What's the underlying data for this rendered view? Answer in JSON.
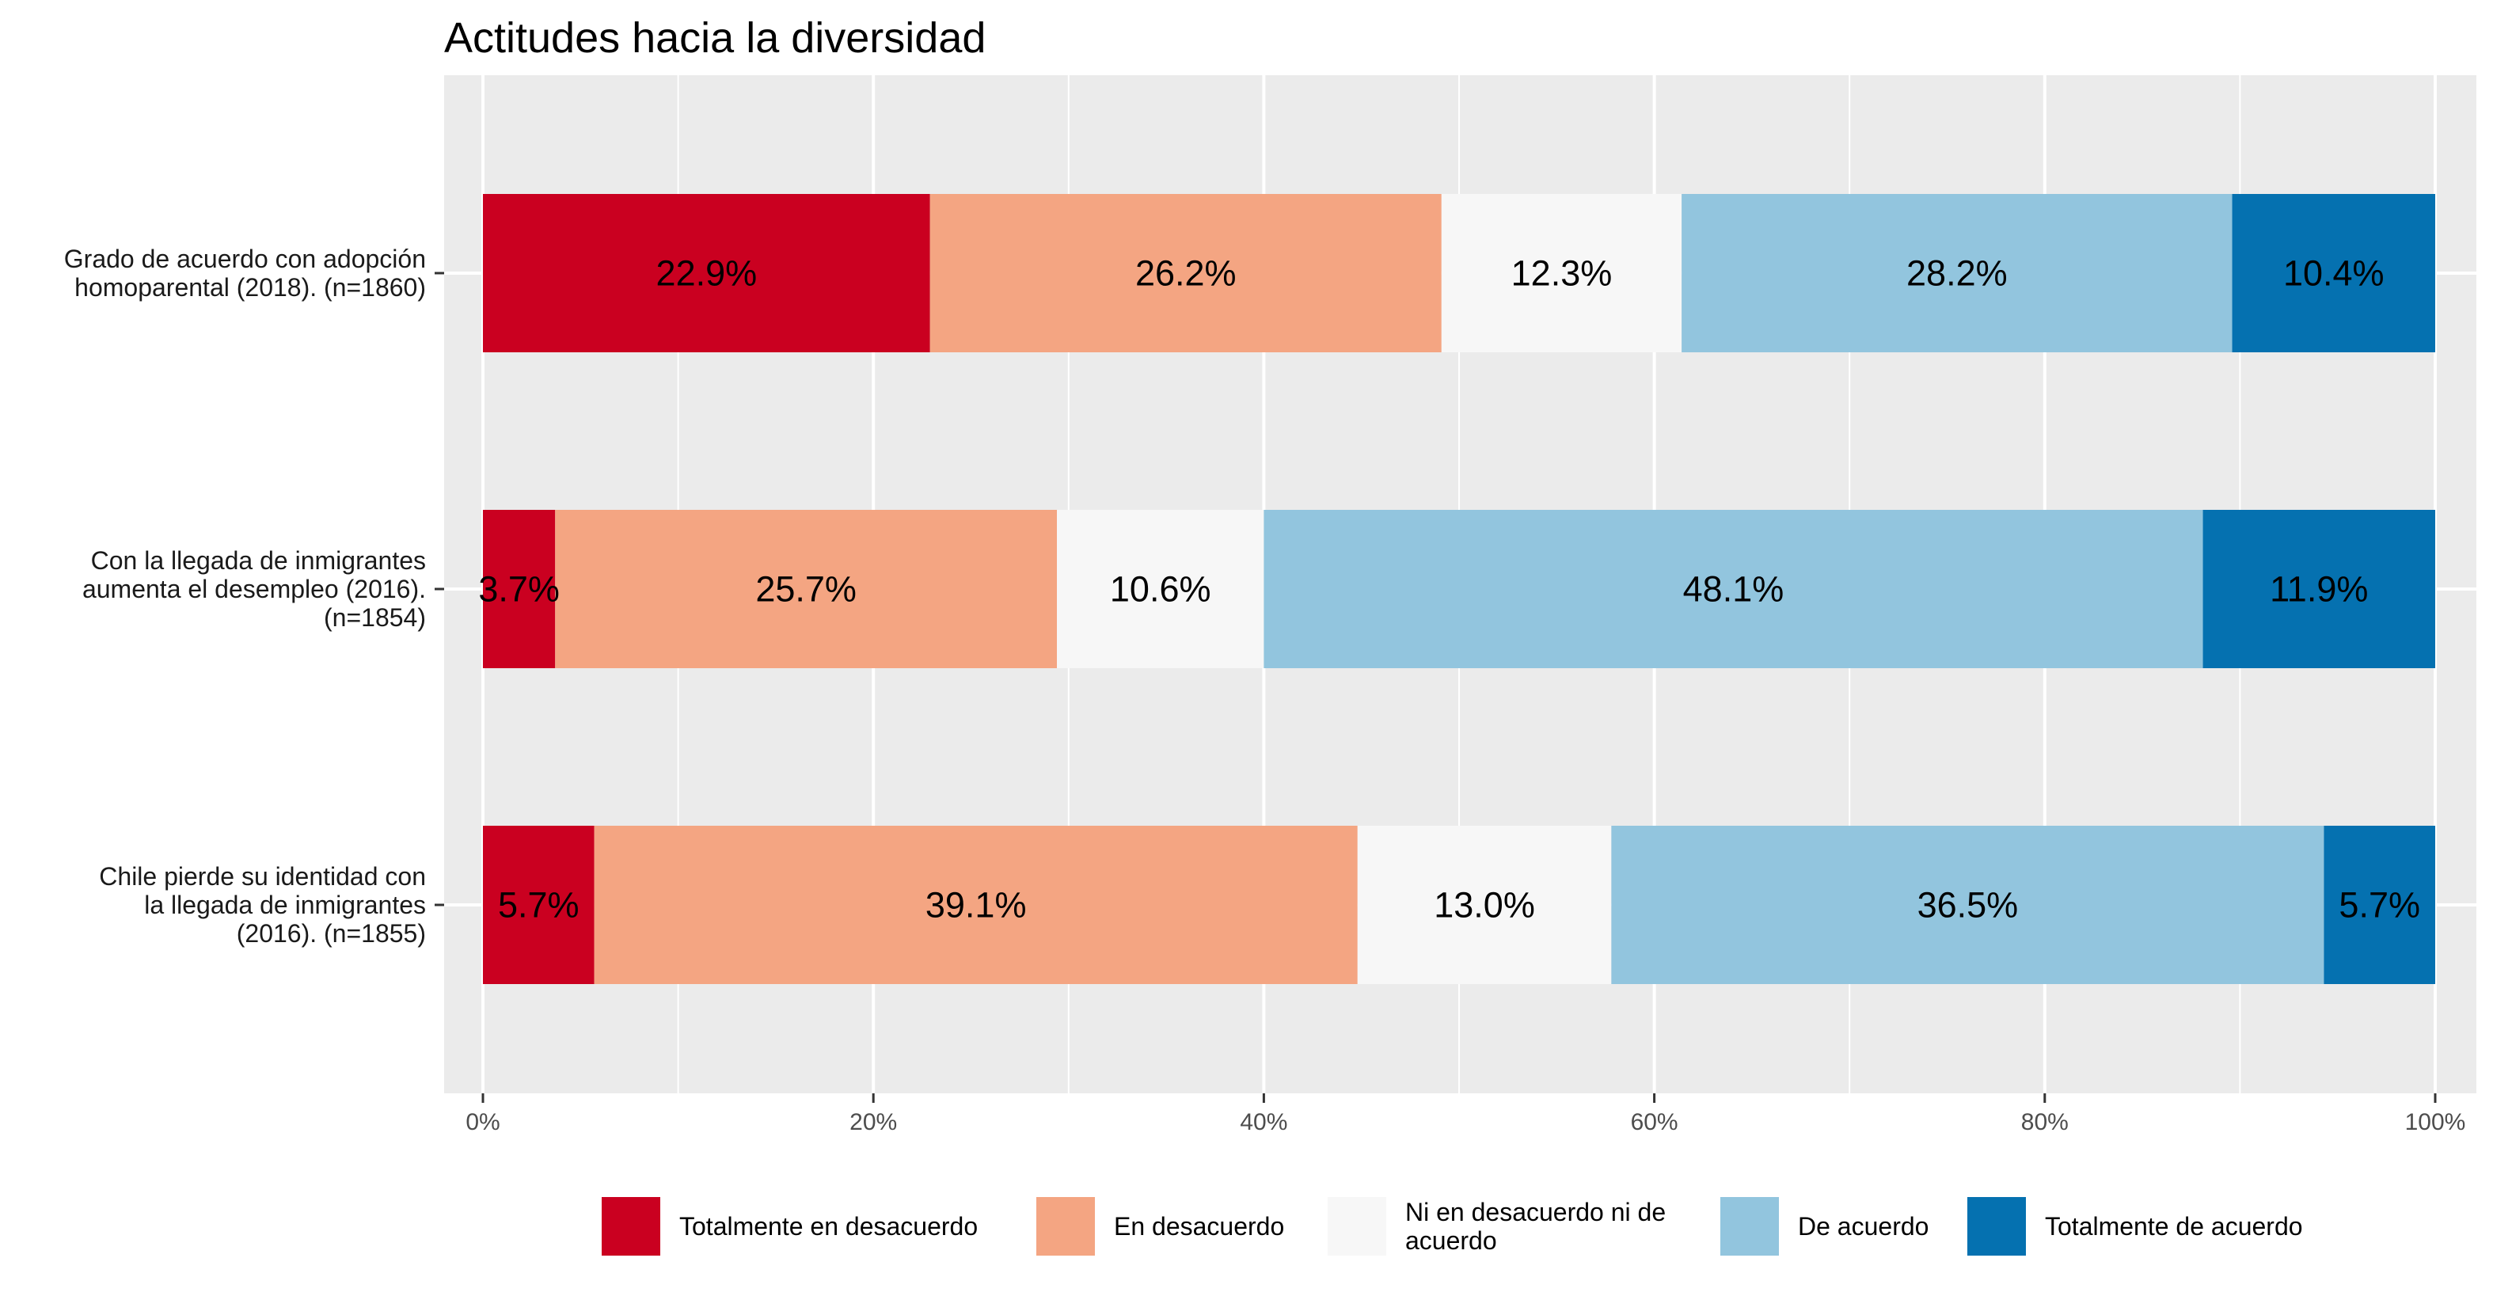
{
  "chart_data": {
    "type": "bar",
    "orientation": "horizontal",
    "stacked": true,
    "title": "Actitudes hacia la diversidad",
    "xlabel": "",
    "ylabel": "",
    "xlim": [
      0,
      100
    ],
    "x_ticks": [
      "0%",
      "20%",
      "40%",
      "60%",
      "80%",
      "100%"
    ],
    "grid": true,
    "legend_position": "bottom",
    "categories": [
      [
        "Grado de acuerdo con adopción",
        "homoparental (2018). (n=1860)"
      ],
      [
        "Con la llegada de inmigrantes",
        "aumenta el desempleo (2016).",
        "(n=1854)"
      ],
      [
        "Chile pierde su identidad con",
        "la llegada de inmigrantes",
        "(2016). (n=1855)"
      ]
    ],
    "series": [
      {
        "name": [
          "Totalmente en desacuerdo"
        ],
        "color": "#ca0020",
        "values": [
          22.9,
          3.7,
          5.7
        ],
        "labels": [
          "22.9%",
          "3.7%",
          "5.7%"
        ]
      },
      {
        "name": [
          "En desacuerdo"
        ],
        "color": "#f4a582",
        "values": [
          26.2,
          25.7,
          39.1
        ],
        "labels": [
          "26.2%",
          "25.7%",
          "39.1%"
        ]
      },
      {
        "name": [
          "Ni en desacuerdo ni de",
          "acuerdo"
        ],
        "color": "#f7f7f7",
        "values": [
          12.3,
          10.6,
          13.0
        ],
        "labels": [
          "12.3%",
          "10.6%",
          "13.0%"
        ]
      },
      {
        "name": [
          "De acuerdo"
        ],
        "color": "#92c5de",
        "values": [
          28.2,
          48.1,
          36.5
        ],
        "labels": [
          "28.2%",
          "48.1%",
          "36.5%"
        ]
      },
      {
        "name": [
          "Totalmente de acuerdo"
        ],
        "color": "#0571b0",
        "values": [
          10.4,
          11.9,
          5.7
        ],
        "labels": [
          "10.4%",
          "11.9%",
          "5.7%"
        ]
      }
    ]
  }
}
